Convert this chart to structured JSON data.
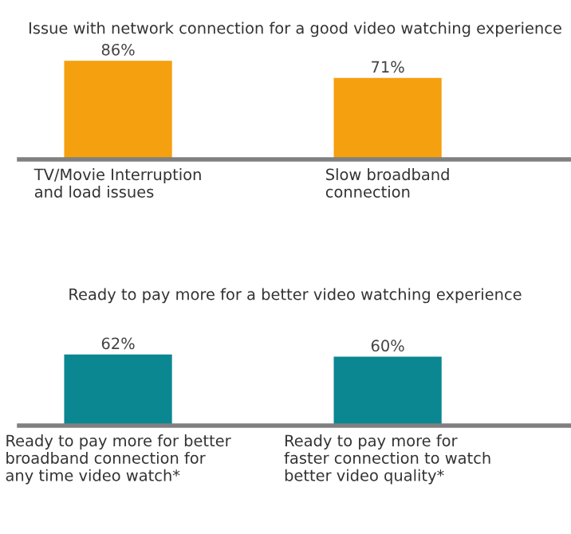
{
  "chart_data": [
    {
      "type": "bar",
      "title": "Issue with network connection for a good video watching experience",
      "categories": [
        "TV/Movie Interruption\nand load issues",
        "Slow broadband\nconnection"
      ],
      "values": [
        86,
        71
      ],
      "value_labels": [
        "86%",
        "71%"
      ],
      "color": "#f5a00f",
      "grid": false,
      "legend": false
    },
    {
      "type": "bar",
      "title": "Ready to pay more for a better video watching experience",
      "categories": [
        "Ready to pay more for better\nbroadband connection for\nany time video watch*",
        "Ready to pay more for\nfaster connection to watch\nbetter video quality*"
      ],
      "values": [
        62,
        60
      ],
      "value_labels": [
        "62%",
        "60%"
      ],
      "color": "#0a8791",
      "grid": false,
      "legend": false
    }
  ]
}
